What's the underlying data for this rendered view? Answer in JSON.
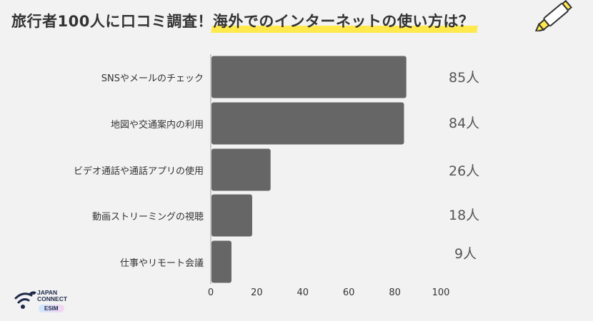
{
  "header": {
    "title_part1": "旅行者100人に口コミ調査！",
    "title_part2": "海外でのインターネットの使い方は？"
  },
  "brand": {
    "line1": "JAPAN",
    "line2": "CONNECT",
    "badge": "ESIM"
  },
  "colors": {
    "bar": "#666666",
    "highlight": "#ffe94d",
    "background": "#f2f2f2"
  },
  "chart_data": {
    "type": "bar",
    "orientation": "horizontal",
    "categories": [
      "SNSやメールのチェック",
      "地図や交通案内の利用",
      "ビデオ通話や通話アプリの使用",
      "動画ストリーミングの視聴",
      "仕事やリモート会議"
    ],
    "values": [
      85,
      84,
      26,
      18,
      9
    ],
    "value_labels": [
      "85人",
      "84人",
      "26人",
      "18人",
      "9人"
    ],
    "xlim": [
      0,
      100
    ],
    "xticks": [
      "0",
      "20",
      "40",
      "60",
      "80",
      "100"
    ],
    "grid": false
  }
}
